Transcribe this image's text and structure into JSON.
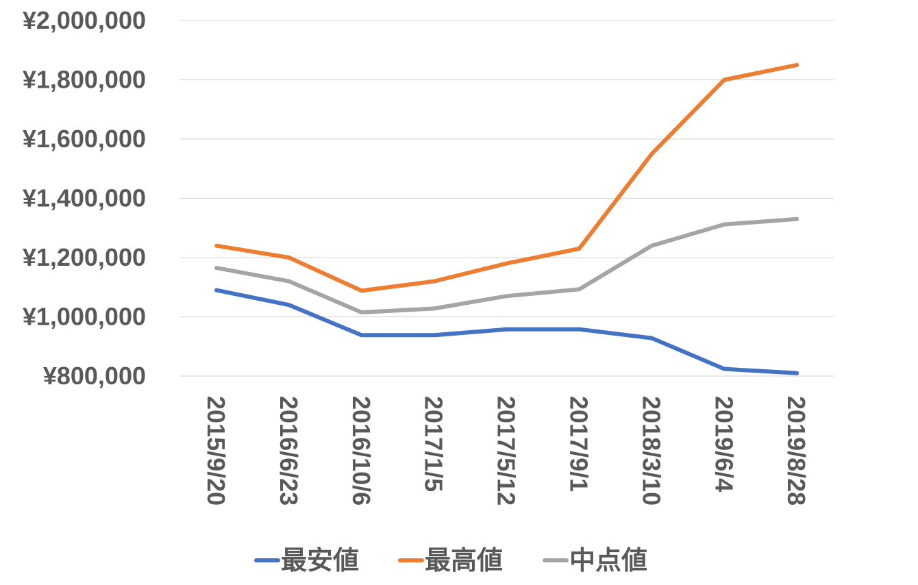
{
  "chart_data": {
    "type": "line",
    "title": "",
    "xlabel": "",
    "ylabel": "",
    "categories": [
      "2015/9/20",
      "2016/6/23",
      "2016/10/6",
      "2017/1/5",
      "2017/5/12",
      "2017/9/1",
      "2018/3/10",
      "2019/6/4",
      "2019/8/28"
    ],
    "y_tick_labels": [
      "¥800,000",
      "¥1,000,000",
      "¥1,200,000",
      "¥1,400,000",
      "¥1,600,000",
      "¥1,800,000",
      "¥2,000,000"
    ],
    "y_ticks": [
      800000,
      1000000,
      1200000,
      1400000,
      1600000,
      1800000,
      2000000
    ],
    "ylim": [
      800000,
      2000000
    ],
    "grid": true,
    "legend_position": "bottom",
    "series": [
      {
        "name": "最安値",
        "color": "#4472c4",
        "values": [
          1090000,
          1040000,
          938000,
          938000,
          958000,
          958000,
          928000,
          824000,
          810000
        ]
      },
      {
        "name": "最高値",
        "color": "#ed7d31",
        "values": [
          1240000,
          1200000,
          1088000,
          1120000,
          1180000,
          1230000,
          1550000,
          1800000,
          1850000
        ]
      },
      {
        "name": "中点値",
        "color": "#a5a5a5",
        "values": [
          1165000,
          1120000,
          1015000,
          1028000,
          1070000,
          1093000,
          1240000,
          1312000,
          1330000
        ]
      }
    ]
  }
}
